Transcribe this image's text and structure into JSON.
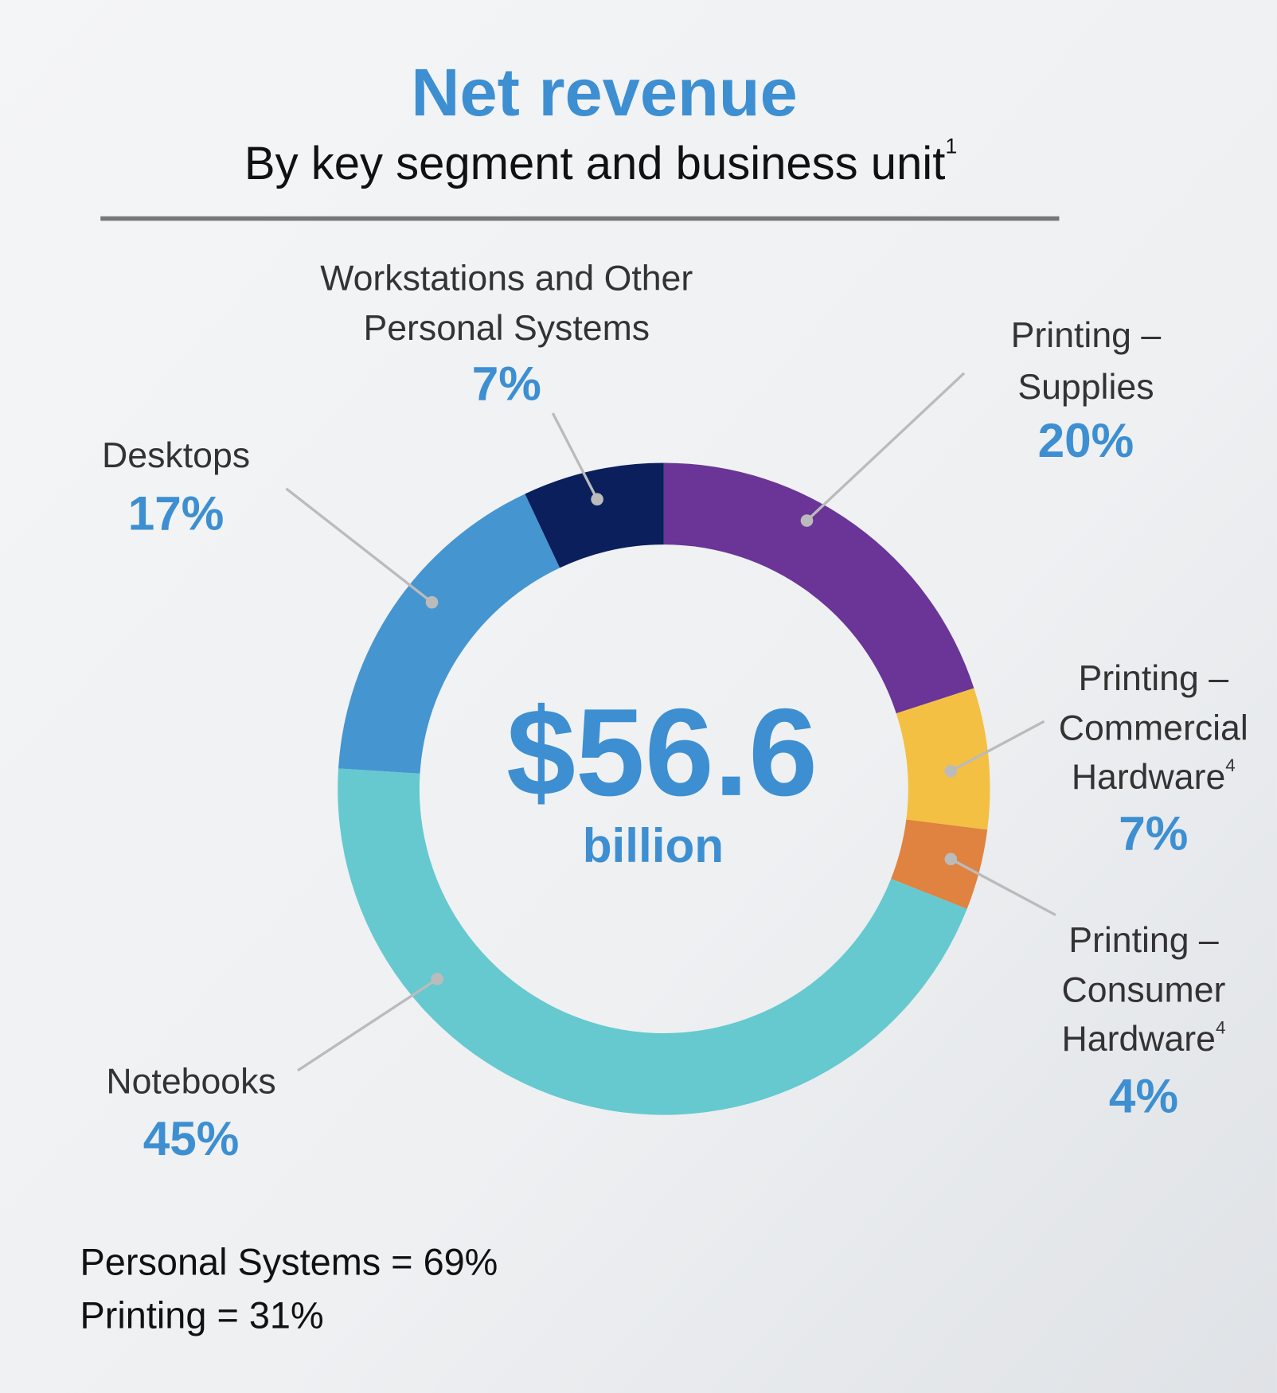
{
  "chart_data": {
    "type": "donut",
    "title": "Net revenue",
    "subtitle": "By key segment and business unit",
    "subtitle_footnote": "1",
    "center_label": "$56.6",
    "center_sublabel": "billion",
    "categories": [
      [
        "Printing –",
        "Supplies"
      ],
      [
        "Printing –",
        "Commercial",
        "Hardware"
      ],
      [
        "Printing –",
        "Consumer",
        "Hardware"
      ],
      [
        "Notebooks"
      ],
      [
        "Desktops"
      ],
      [
        "Workstations and Other",
        "Personal Systems"
      ]
    ],
    "category_footnotes": [
      null,
      "4",
      "4",
      null,
      null,
      null
    ],
    "values": [
      20,
      7,
      4,
      45,
      17,
      7
    ],
    "value_labels": [
      "20%",
      "7%",
      "4%",
      "45%",
      "17%",
      "7%"
    ],
    "colors": [
      "#6a3597",
      "#f4c043",
      "#e08240",
      "#65c9cf",
      "#4595d1",
      "#0a1f5c"
    ],
    "notes": [
      "Personal Systems = 69%",
      "Printing = 31%"
    ]
  }
}
